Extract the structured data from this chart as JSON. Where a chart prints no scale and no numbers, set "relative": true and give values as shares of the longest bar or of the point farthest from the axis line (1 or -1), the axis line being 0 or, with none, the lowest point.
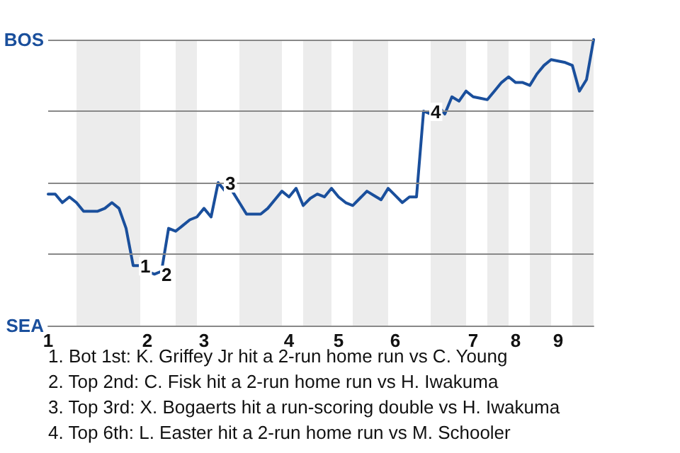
{
  "chart_data": {
    "type": "line",
    "relative": true,
    "categories": [
      "1",
      null,
      null,
      null,
      null,
      null,
      null,
      null,
      null,
      null,
      null,
      null,
      null,
      null,
      "2",
      null,
      null,
      null,
      null,
      null,
      null,
      null,
      "3",
      null,
      null,
      null,
      null,
      null,
      null,
      null,
      null,
      null,
      null,
      null,
      "4",
      null,
      null,
      null,
      null,
      null,
      null,
      "5",
      null,
      null,
      null,
      null,
      null,
      null,
      null,
      "6",
      null,
      null,
      null,
      null,
      null,
      null,
      null,
      null,
      null,
      null,
      "7",
      null,
      null,
      null,
      null,
      null,
      "8",
      null,
      null,
      null,
      null,
      null,
      "9",
      null,
      null,
      null,
      null,
      null
    ],
    "series": [
      {
        "color": "#1a4f9c",
        "values": [
          0.46,
          0.46,
          0.43,
          0.45,
          0.43,
          0.4,
          0.4,
          0.4,
          0.41,
          0.43,
          0.41,
          0.34,
          0.21,
          0.21,
          0.19,
          0.18,
          0.19,
          0.34,
          0.33,
          0.35,
          0.37,
          0.38,
          0.41,
          0.38,
          0.5,
          0.47,
          0.47,
          0.43,
          0.39,
          0.39,
          0.39,
          0.41,
          0.44,
          0.47,
          0.45,
          0.48,
          0.42,
          0.445,
          0.46,
          0.45,
          0.48,
          0.45,
          0.43,
          0.42,
          0.445,
          0.47,
          0.455,
          0.44,
          0.48,
          0.455,
          0.43,
          0.45,
          0.45,
          0.75,
          0.74,
          0.77,
          0.74,
          0.8,
          0.785,
          0.82,
          0.8,
          0.795,
          0.79,
          0.82,
          0.85,
          0.87,
          0.85,
          0.85,
          0.84,
          0.88,
          0.91,
          0.93,
          0.925,
          0.92,
          0.91,
          0.82,
          0.86,
          1
        ]
      }
    ],
    "ref_lines": [
      {
        "axis": "y",
        "value": 0,
        "label": "SEA",
        "color": "#888888"
      },
      {
        "axis": "y",
        "value": 0.25,
        "label": null,
        "color": "#888888"
      },
      {
        "axis": "y",
        "value": 0.5,
        "label": null,
        "color": "#888888"
      },
      {
        "axis": "y",
        "value": 0.75,
        "label": null,
        "color": "#888888"
      },
      {
        "axis": "y",
        "value": 1,
        "label": "BOS",
        "color": "#888888"
      }
    ],
    "annotations": [
      {
        "text": "1",
        "y": 0.21
      },
      {
        "text": "2",
        "y": 0.18
      },
      {
        "text": "3",
        "y": 0.5
      },
      {
        "text": "4",
        "y": 0.75
      },
      "1. Bot 1st: K. Griffey Jr hit a 2-run home run vs C. Young",
      "2. Top 2nd: C. Fisk hit a 2-run home run vs H. Iwakuma",
      "3. Top 3rd: X. Bogaerts hit a run-scoring double vs H. Iwakuma",
      "4. Top 6th: L. Easter hit a 2-run home run vs M. Schooler"
    ],
    "marker": "none",
    "line_style": "solid"
  }
}
